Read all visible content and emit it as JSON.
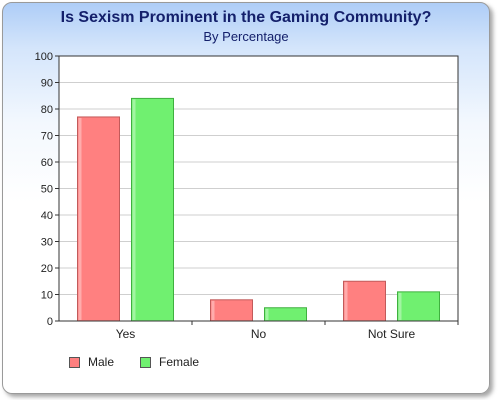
{
  "chart_data": {
    "type": "bar",
    "title": "Is Sexism Prominent in the Gaming Community?",
    "subtitle": "By Percentage",
    "categories": [
      "Yes",
      "No",
      "Not Sure"
    ],
    "series": [
      {
        "name": "Male",
        "values": [
          77,
          8,
          15
        ],
        "color": "#ff8080"
      },
      {
        "name": "Female",
        "values": [
          84,
          5,
          11
        ],
        "color": "#70f070"
      }
    ],
    "ylim": [
      0,
      100
    ],
    "yticks": [
      0,
      10,
      20,
      30,
      40,
      50,
      60,
      70,
      80,
      90,
      100
    ],
    "grid": true,
    "legend_position": "bottom-left"
  }
}
